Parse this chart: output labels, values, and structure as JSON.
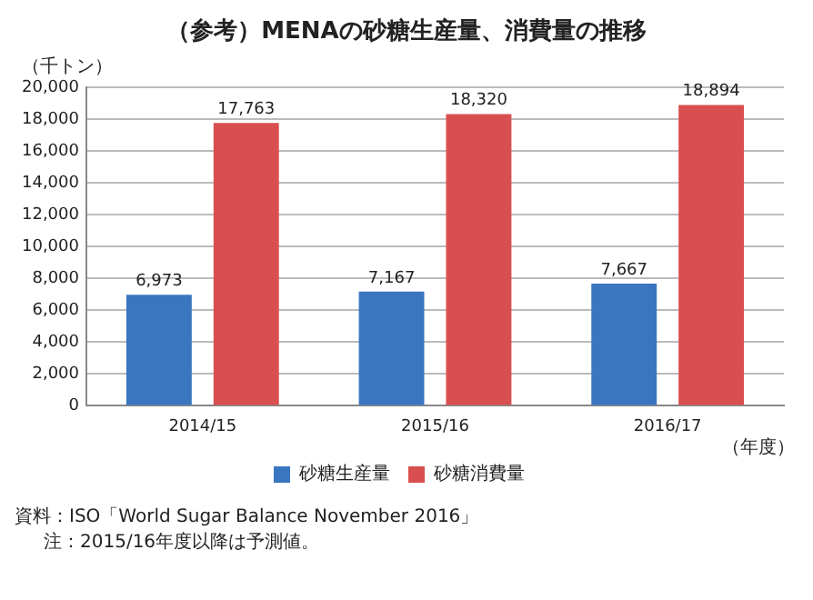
{
  "chart_data": {
    "type": "bar",
    "title": "（参考）MENAの砂糖生産量、消費量の推移",
    "ylabel": "（千トン）",
    "xlabel": "（年度）",
    "categories": [
      "2014/15",
      "2015/16",
      "2016/17"
    ],
    "series": [
      {
        "name": "砂糖生産量",
        "color": "#3a75c0",
        "values": [
          6973,
          7167,
          7667
        ],
        "value_labels": [
          "6,973",
          "7,167",
          "7,667"
        ]
      },
      {
        "name": "砂糖消費量",
        "color": "#d94f4f",
        "values": [
          17763,
          18320,
          18894
        ],
        "value_labels": [
          "17,763",
          "18,320",
          "18,894"
        ]
      }
    ],
    "ylim": [
      0,
      20000
    ],
    "yticks": [
      {
        "value": 0,
        "label": "0"
      },
      {
        "value": 2000,
        "label": "2,000"
      },
      {
        "value": 4000,
        "label": "4,000"
      },
      {
        "value": 6000,
        "label": "6,000"
      },
      {
        "value": 8000,
        "label": "8,000"
      },
      {
        "value": 10000,
        "label": "10,000"
      },
      {
        "value": 12000,
        "label": "12,000"
      },
      {
        "value": 14000,
        "label": "14,000"
      },
      {
        "value": 16000,
        "label": "16,000"
      },
      {
        "value": 18000,
        "label": "18,000"
      },
      {
        "value": 20000,
        "label": "20,000"
      }
    ],
    "grid": "y",
    "legend": "bottom",
    "annotations": [
      "資料：ISO「World Sugar Balance November 2016」",
      "注：2015/16年度以降は予測値。"
    ]
  }
}
